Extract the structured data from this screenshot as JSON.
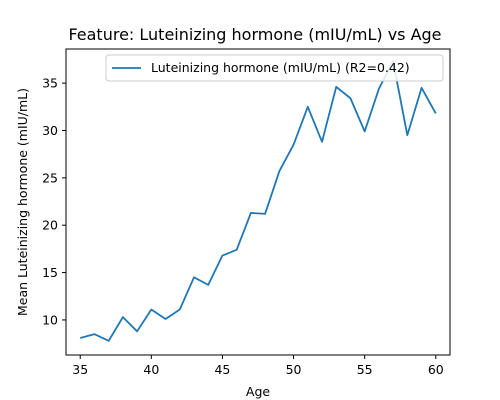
{
  "chart_data": {
    "type": "line",
    "title": "Feature: Luteinizing hormone (mIU/mL) vs Age",
    "xlabel": "Age",
    "ylabel": "Mean Luteinizing hormone (mIU/mL)",
    "xlim": [
      34,
      61
    ],
    "ylim": [
      6.3,
      38.6
    ],
    "xticks": [
      35,
      40,
      45,
      50,
      55,
      60
    ],
    "yticks": [
      10,
      15,
      20,
      25,
      30,
      35
    ],
    "grid": false,
    "legend_position": "top-right",
    "series": [
      {
        "name": "Luteinizing hormone (mIU/mL) (R2=0.42)",
        "color": "#1f77b4",
        "x": [
          35,
          36,
          37,
          38,
          39,
          40,
          41,
          42,
          43,
          44,
          45,
          46,
          47,
          48,
          49,
          50,
          51,
          52,
          53,
          54,
          55,
          56,
          57,
          58,
          59,
          60
        ],
        "y": [
          8.1,
          8.5,
          7.8,
          10.3,
          8.8,
          11.1,
          10.1,
          11.1,
          14.5,
          13.7,
          16.8,
          17.4,
          21.3,
          21.2,
          25.7,
          28.5,
          32.5,
          28.8,
          34.6,
          33.4,
          29.9,
          34.4,
          37.3,
          29.5,
          34.5,
          31.8
        ]
      }
    ]
  }
}
